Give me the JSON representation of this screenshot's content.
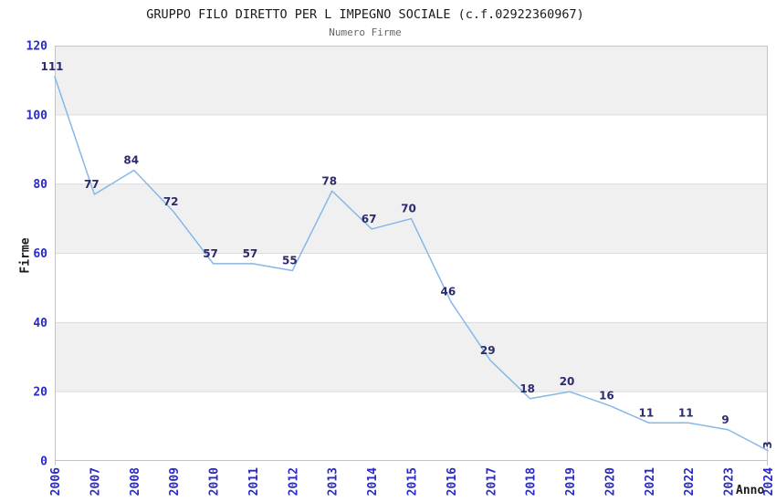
{
  "chart_data": {
    "type": "line",
    "title": "GRUPPO FILO DIRETTO PER L IMPEGNO SOCIALE (c.f.02922360967)",
    "subtitle": "Numero Firme",
    "xlabel": "Anno",
    "ylabel": "Firme",
    "x": [
      2006,
      2007,
      2008,
      2009,
      2010,
      2011,
      2012,
      2013,
      2014,
      2015,
      2016,
      2017,
      2018,
      2019,
      2020,
      2021,
      2022,
      2023,
      2024
    ],
    "series": [
      {
        "name": "Numero Firme",
        "values": [
          111,
          77,
          84,
          72,
          57,
          57,
          55,
          78,
          67,
          70,
          46,
          29,
          18,
          20,
          16,
          11,
          11,
          9,
          3
        ]
      }
    ],
    "ylim": [
      0,
      120
    ],
    "ytick_step": 20,
    "yticks": [
      0,
      20,
      40,
      60,
      80,
      100,
      120
    ],
    "grid": "horizontal",
    "bands": "alternating-horizontal",
    "legend": "none",
    "colors": {
      "line": "#85b8e8",
      "data_label": "#2b2b6e",
      "tick_label": "#2929cc",
      "band": "#f0f0f0",
      "band_alt": "#ffffff",
      "grid": "#dcdcdc",
      "border": "#c4c4c4",
      "title": "#1a1a1a",
      "subtitle": "#666666",
      "axis_title": "#1a1a1a",
      "background": "#ffffff"
    }
  }
}
